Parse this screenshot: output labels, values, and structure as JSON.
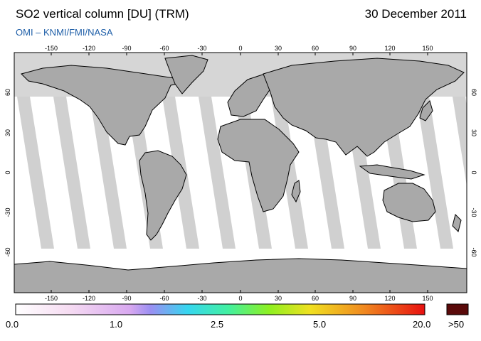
{
  "header": {
    "title": "SO2 vertical column [DU] (TRM)",
    "date": "30 December 2011",
    "source": "OMI  –  KNMI/FMI/NASA"
  },
  "map": {
    "lon_ticks": [
      "-150",
      "-120",
      "-90",
      "-60",
      "-30",
      "0",
      "30",
      "60",
      "90",
      "120",
      "150"
    ],
    "lat_ticks": [
      "60",
      "30",
      "0",
      "-30",
      "-60"
    ]
  },
  "colorbar": {
    "labels": [
      "0.0",
      "1.0",
      "2.5",
      "5.0",
      "20.0"
    ],
    "overflow_label": ">50",
    "overflow_color": "#5a0a0a"
  }
}
